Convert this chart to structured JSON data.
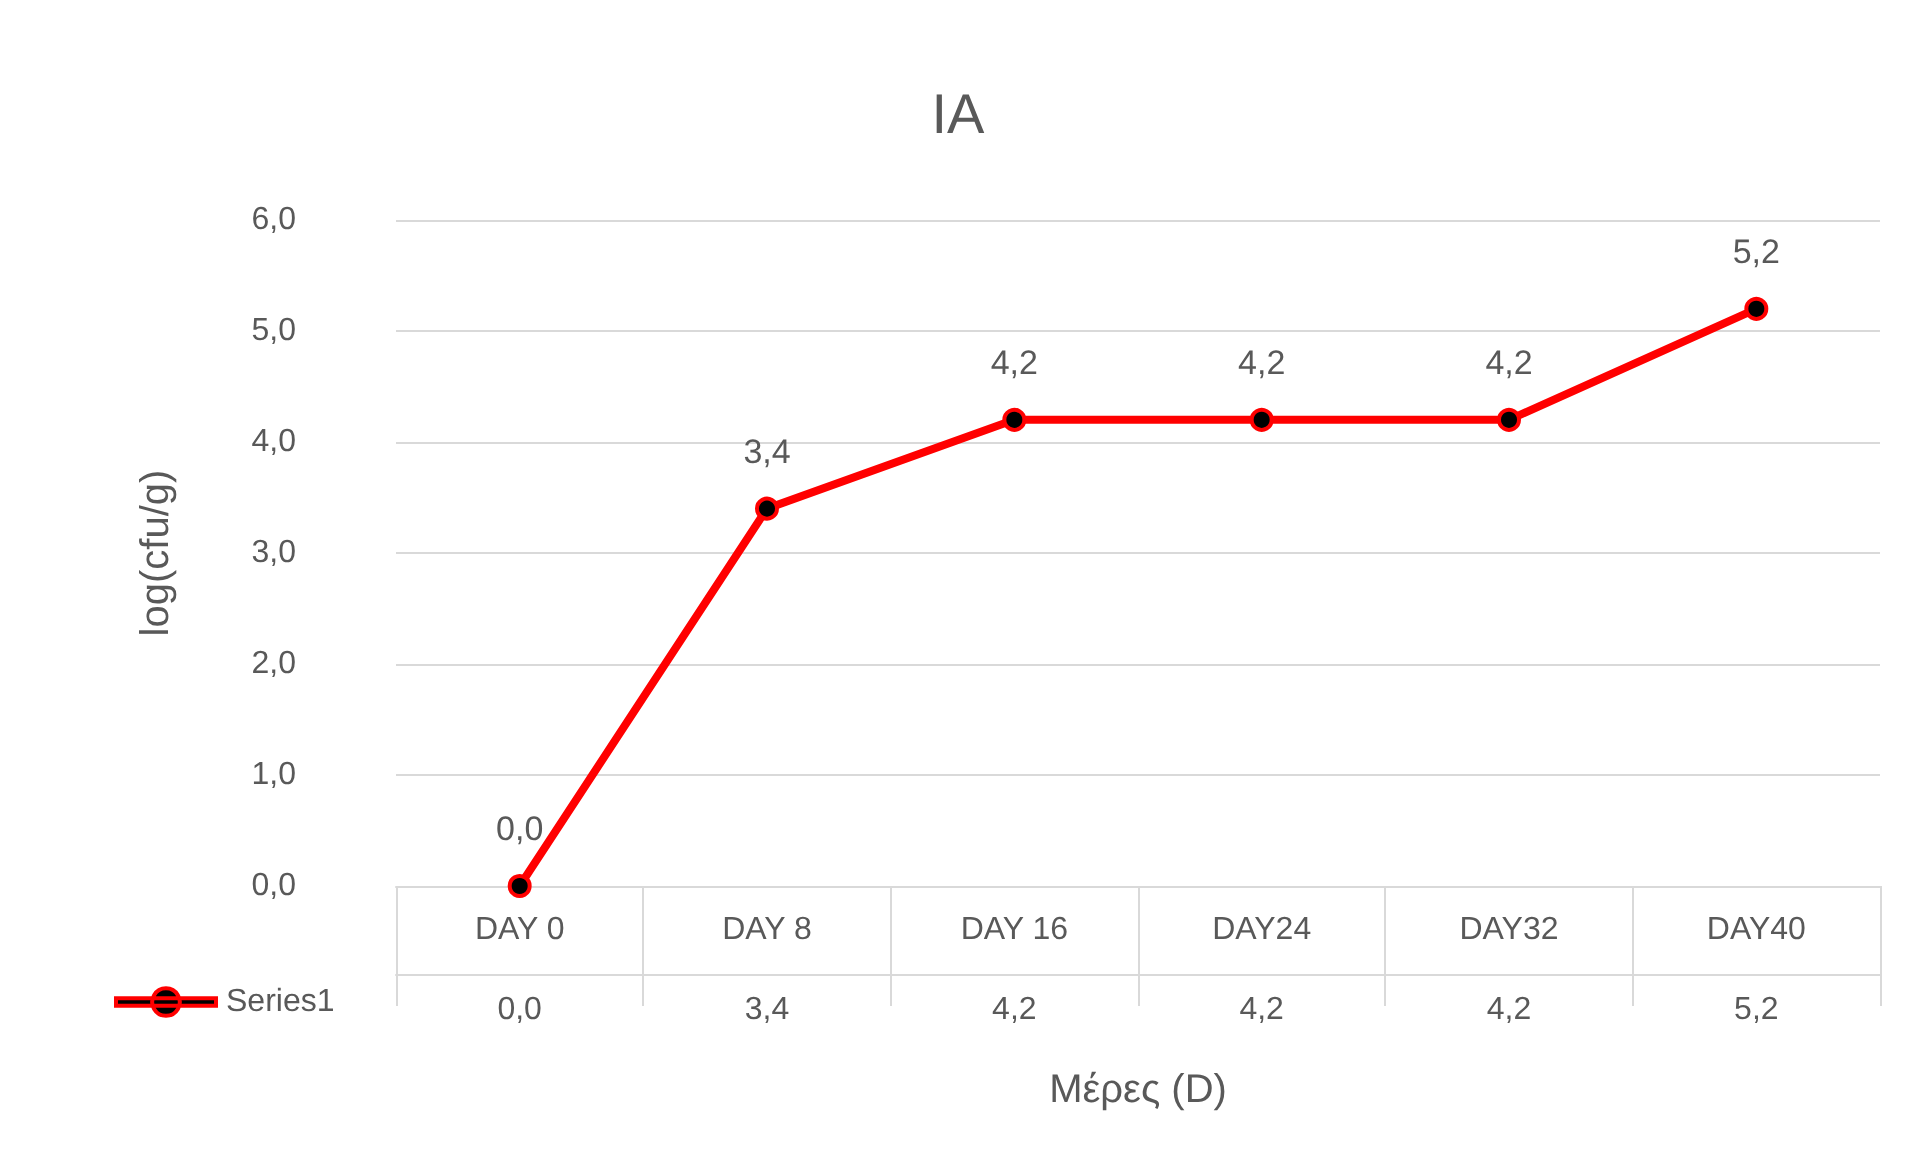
{
  "chart_data": {
    "type": "line",
    "title": "IA",
    "xlabel": "Μέρες (D)",
    "ylabel": "log(cfu/g)",
    "categories": [
      "DAY 0",
      "DAY 8",
      "DAY 16",
      "DAY24",
      "DAY32",
      "DAY40"
    ],
    "series": [
      {
        "name": "Series1",
        "color": "#ff0000",
        "values": [
          0.0,
          3.4,
          4.2,
          4.2,
          4.2,
          5.2
        ],
        "value_labels": [
          "0,0",
          "3,4",
          "4,2",
          "4,2",
          "4,2",
          "5,2"
        ]
      }
    ],
    "ylim": [
      0,
      6
    ],
    "yticks": [
      {
        "value": 0,
        "label": "0,0"
      },
      {
        "value": 1,
        "label": "1,0"
      },
      {
        "value": 2,
        "label": "2,0"
      },
      {
        "value": 3,
        "label": "3,0"
      },
      {
        "value": 4,
        "label": "4,0"
      },
      {
        "value": 5,
        "label": "5,0"
      },
      {
        "value": 6,
        "label": "6,0"
      }
    ],
    "grid": "y",
    "legend": "bottom left",
    "marker": "circle",
    "line_style": "solid"
  }
}
